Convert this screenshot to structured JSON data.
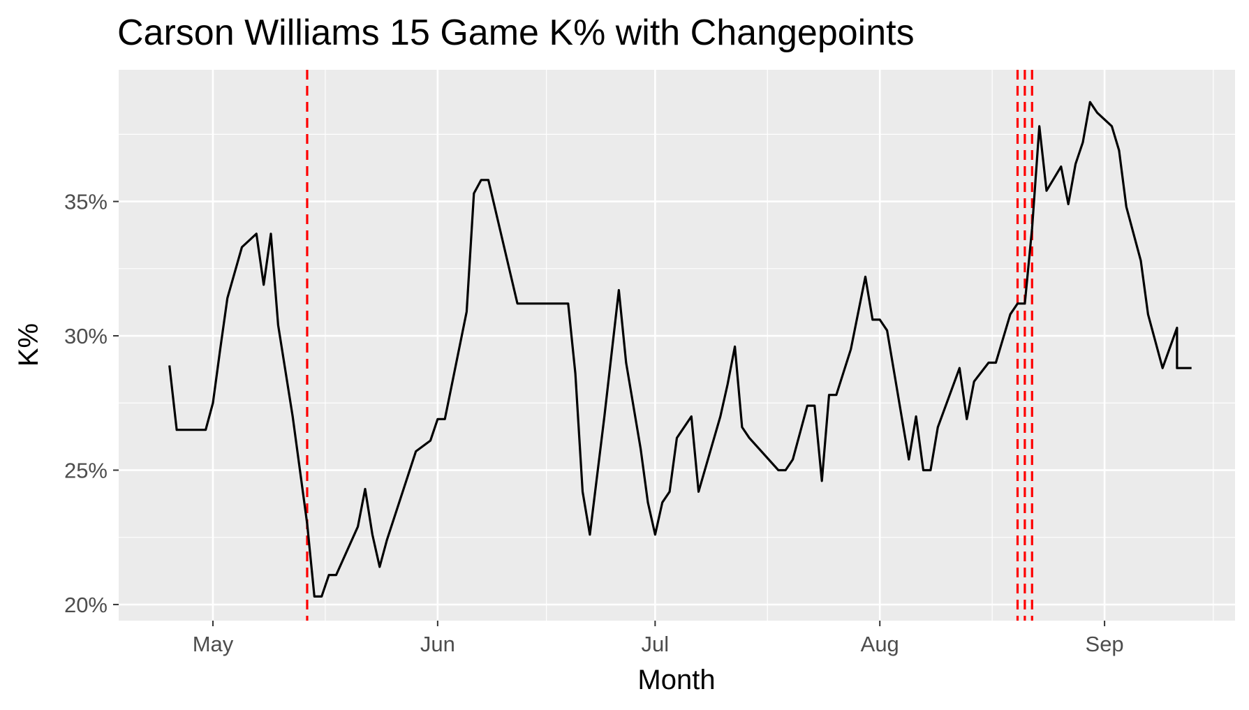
{
  "chart_data": {
    "type": "line",
    "title": "Carson Williams 15 Game K% with Changepoints",
    "xlabel": "Month",
    "ylabel": "K%",
    "x_tick_labels": [
      "May",
      "Jun",
      "Jul",
      "Aug",
      "Sep"
    ],
    "x_tick_dates": [
      "2024-05-01",
      "2024-06-01",
      "2024-07-01",
      "2024-08-01",
      "2024-09-01"
    ],
    "y_tick_labels": [
      "20%",
      "25%",
      "30%",
      "35%"
    ],
    "y_ticks": [
      20,
      25,
      30,
      35
    ],
    "ylim": [
      19.4,
      39.9
    ],
    "xlim": [
      "2024-04-18",
      "2024-09-19"
    ],
    "grid": true,
    "background": "#ebebeb",
    "line_color": "#000000",
    "changepoint_color": "#ff0000",
    "changepoints": [
      "2024-05-14",
      "2024-08-20",
      "2024-08-21",
      "2024-08-22"
    ],
    "series": [
      {
        "x": [
          "2024-04-25",
          "2024-04-26",
          "2024-04-27",
          "2024-04-28",
          "2024-04-29",
          "2024-04-30",
          "2024-05-01",
          "2024-05-02",
          "2024-05-03",
          "2024-05-05",
          "2024-05-07",
          "2024-05-08",
          "2024-05-09",
          "2024-05-10",
          "2024-05-12",
          "2024-05-14",
          "2024-05-15",
          "2024-05-16",
          "2024-05-17",
          "2024-05-18",
          "2024-05-21",
          "2024-05-22",
          "2024-05-23",
          "2024-05-24",
          "2024-05-25",
          "2024-05-29",
          "2024-05-31",
          "2024-06-01",
          "2024-06-02",
          "2024-06-05",
          "2024-06-06",
          "2024-06-07",
          "2024-06-08",
          "2024-06-12",
          "2024-06-13",
          "2024-06-19",
          "2024-06-20",
          "2024-06-21",
          "2024-06-22",
          "2024-06-24",
          "2024-06-26",
          "2024-06-27",
          "2024-06-29",
          "2024-06-30",
          "2024-07-01",
          "2024-07-02",
          "2024-07-03",
          "2024-07-04",
          "2024-07-06",
          "2024-07-07",
          "2024-07-10",
          "2024-07-11",
          "2024-07-12",
          "2024-07-13",
          "2024-07-14",
          "2024-07-18",
          "2024-07-19",
          "2024-07-20",
          "2024-07-22",
          "2024-07-23",
          "2024-07-24",
          "2024-07-25",
          "2024-07-26",
          "2024-07-28",
          "2024-07-30",
          "2024-07-31",
          "2024-08-01",
          "2024-08-02",
          "2024-08-03",
          "2024-08-05",
          "2024-08-06",
          "2024-08-07",
          "2024-08-08",
          "2024-08-09",
          "2024-08-12",
          "2024-08-13",
          "2024-08-14",
          "2024-08-16",
          "2024-08-17",
          "2024-08-19",
          "2024-08-20",
          "2024-08-21",
          "2024-08-22",
          "2024-08-23",
          "2024-08-24",
          "2024-08-26",
          "2024-08-27",
          "2024-08-28",
          "2024-08-29",
          "2024-08-30",
          "2024-08-31",
          "2024-09-02",
          "2024-09-03",
          "2024-09-04",
          "2024-09-06",
          "2024-09-07",
          "2024-09-09",
          "2024-09-11",
          "2024-09-11",
          "2024-09-13"
        ],
        "y": [
          28.9,
          26.5,
          26.5,
          26.5,
          26.5,
          26.5,
          27.5,
          29.5,
          31.4,
          33.3,
          33.8,
          31.9,
          33.8,
          30.4,
          27.0,
          23.0,
          20.3,
          20.3,
          21.1,
          21.1,
          22.9,
          24.3,
          22.6,
          21.4,
          22.4,
          25.7,
          26.1,
          26.9,
          26.9,
          30.9,
          35.3,
          35.8,
          35.8,
          31.2,
          31.2,
          31.2,
          28.6,
          24.2,
          22.6,
          27.0,
          31.7,
          29.0,
          25.8,
          23.8,
          22.6,
          23.8,
          24.2,
          26.2,
          27.0,
          24.2,
          27.0,
          28.2,
          29.6,
          26.6,
          26.2,
          25.0,
          25.0,
          25.4,
          27.4,
          27.4,
          24.6,
          27.8,
          27.8,
          29.5,
          32.2,
          30.6,
          30.6,
          30.2,
          28.6,
          25.4,
          27.0,
          25.0,
          25.0,
          26.6,
          28.8,
          26.9,
          28.3,
          29.0,
          29.0,
          30.8,
          31.2,
          31.2,
          34.0,
          37.8,
          35.4,
          36.3,
          34.9,
          36.4,
          37.2,
          38.7,
          38.3,
          37.8,
          36.9,
          34.8,
          32.8,
          30.8,
          28.8,
          30.3,
          28.8,
          28.8
        ]
      }
    ]
  }
}
